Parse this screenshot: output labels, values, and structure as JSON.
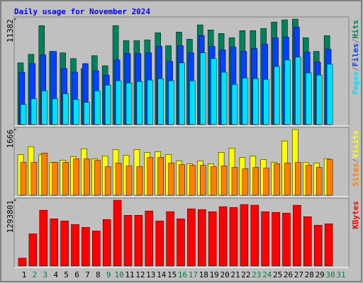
{
  "chart_data": [
    {
      "type": "bar",
      "title": "Daily usage for November 2024",
      "title_color": "#0000ff",
      "separator": "/",
      "separator_color": "#808080",
      "ylim": [
        0,
        11382
      ],
      "yticks": [
        11382
      ],
      "series": [
        {
          "name": "Hits",
          "color": "#00805c",
          "values": [
            6656,
            7585,
            10681,
            7895,
            7740,
            7121,
            6037,
            7430,
            6347,
            10681,
            9056,
            9056,
            9133,
            9907,
            8514,
            9985,
            9211,
            10759,
            10217,
            9830,
            9365,
            10139,
            10139,
            10372,
            11068,
            11300,
            11382,
            9365,
            7895,
            9598,
            null
          ]
        },
        {
          "name": "Files",
          "color": "#0040ff",
          "values": [
            5650,
            6579,
            7508,
            7895,
            6037,
            5650,
            6579,
            5805,
            5341,
            6966,
            7663,
            7663,
            7740,
            8437,
            6811,
            8514,
            7740,
            9598,
            8437,
            8050,
            8359,
            7895,
            8204,
            8669,
            9365,
            9443,
            10526,
            7818,
            6734,
            8127,
            null
          ]
        },
        {
          "name": "Pages",
          "color": "#00e0ff",
          "values": [
            2167,
            2786,
            3638,
            2786,
            3328,
            2709,
            2399,
            3638,
            4257,
            4721,
            4489,
            4644,
            4799,
            4954,
            4721,
            6656,
            4721,
            7740,
            7121,
            5650,
            4334,
            5031,
            4954,
            4876,
            6269,
            6966,
            7276,
            5573,
            5341,
            6502,
            null
          ]
        }
      ]
    },
    {
      "type": "bar",
      "separator": "/",
      "separator_color": "#808080",
      "ylim": [
        0,
        1666
      ],
      "yticks": [
        1666
      ],
      "series": [
        {
          "name": "Visits",
          "color": "#ffff00",
          "values": [
            1032,
            1231,
            1032,
            833,
            887,
            977,
            1177,
            923,
            996,
            1158,
            1014,
            1158,
            1086,
            1104,
            1032,
            869,
            796,
            869,
            796,
            1086,
            1195,
            959,
            996,
            905,
            833,
            1376,
            1666,
            833,
            815,
            923,
            null
          ]
        },
        {
          "name": "Sites",
          "color": "#ff8000",
          "values": [
            833,
            833,
            1068,
            833,
            833,
            923,
            923,
            887,
            724,
            815,
            742,
            724,
            959,
            959,
            815,
            778,
            760,
            760,
            724,
            742,
            706,
            670,
            706,
            688,
            796,
            815,
            833,
            760,
            706,
            905,
            null
          ]
        }
      ]
    },
    {
      "type": "bar",
      "ylim": [
        0,
        1293801
      ],
      "yticks": [
        1293801
      ],
      "categories": [
        "1",
        "2",
        "3",
        "4",
        "5",
        "6",
        "7",
        "8",
        "9",
        "10",
        "11",
        "12",
        "13",
        "14",
        "15",
        "16",
        "17",
        "18",
        "19",
        "20",
        "21",
        "22",
        "23",
        "24",
        "25",
        "26",
        "27",
        "28",
        "29",
        "30",
        "31"
      ],
      "category_colors": [
        "#000000",
        "#008040",
        "#008040",
        "#000000",
        "#000000",
        "#000000",
        "#000000",
        "#000000",
        "#008040",
        "#008040",
        "#000000",
        "#000000",
        "#000000",
        "#000000",
        "#000000",
        "#008040",
        "#008040",
        "#000000",
        "#000000",
        "#000000",
        "#000000",
        "#000000",
        "#008040",
        "#008040",
        "#000000",
        "#000000",
        "#000000",
        "#000000",
        "#000000",
        "#008040",
        "#008040"
      ],
      "series": [
        {
          "name": "KBytes",
          "color": "#ff0000",
          "values": [
            154693,
            632835,
            1096914,
            928158,
            885969,
            815654,
            759402,
            689087,
            914095,
            1293801,
            998473,
            998473,
            1082851,
            885969,
            1068788,
            928158,
            1125041,
            1110978,
            1068788,
            1167230,
            1153167,
            1209419,
            1195356,
            1068788,
            1054725,
            1040662,
            1195356,
            970347,
            801591,
            829717,
            null
          ]
        }
      ]
    }
  ]
}
